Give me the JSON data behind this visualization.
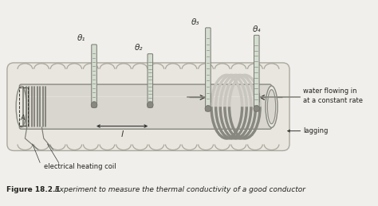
{
  "bg_color": "#f0efeb",
  "title": "Figure 18.2.1",
  "caption": " Experiment to measure the thermal conductivity of a good conductor",
  "labels": {
    "theta1": "θ₁",
    "theta2": "θ₂",
    "theta3": "θ₃",
    "theta4": "θ₄",
    "l_label": "l",
    "A_label": "A",
    "water": "water flowing in\nat a constant rate",
    "lagging": "lagging",
    "coil": "electrical heating coil"
  },
  "colors": {
    "tube_fill": "#d8d6cf",
    "tube_border": "#888880",
    "lagging_fill": "#e8e6de",
    "lagging_border": "#aaa89e",
    "thermometer_fill": "#d4ddd0",
    "thermometer_border": "#777770",
    "therm_bulb": "#888880",
    "coil_color": "#777770",
    "arrow_color": "#333330",
    "text_color": "#222220",
    "water_coil_light": "#c8c6be",
    "water_coil_dark": "#888880",
    "label_color": "#333330",
    "white": "#f0efeb"
  }
}
